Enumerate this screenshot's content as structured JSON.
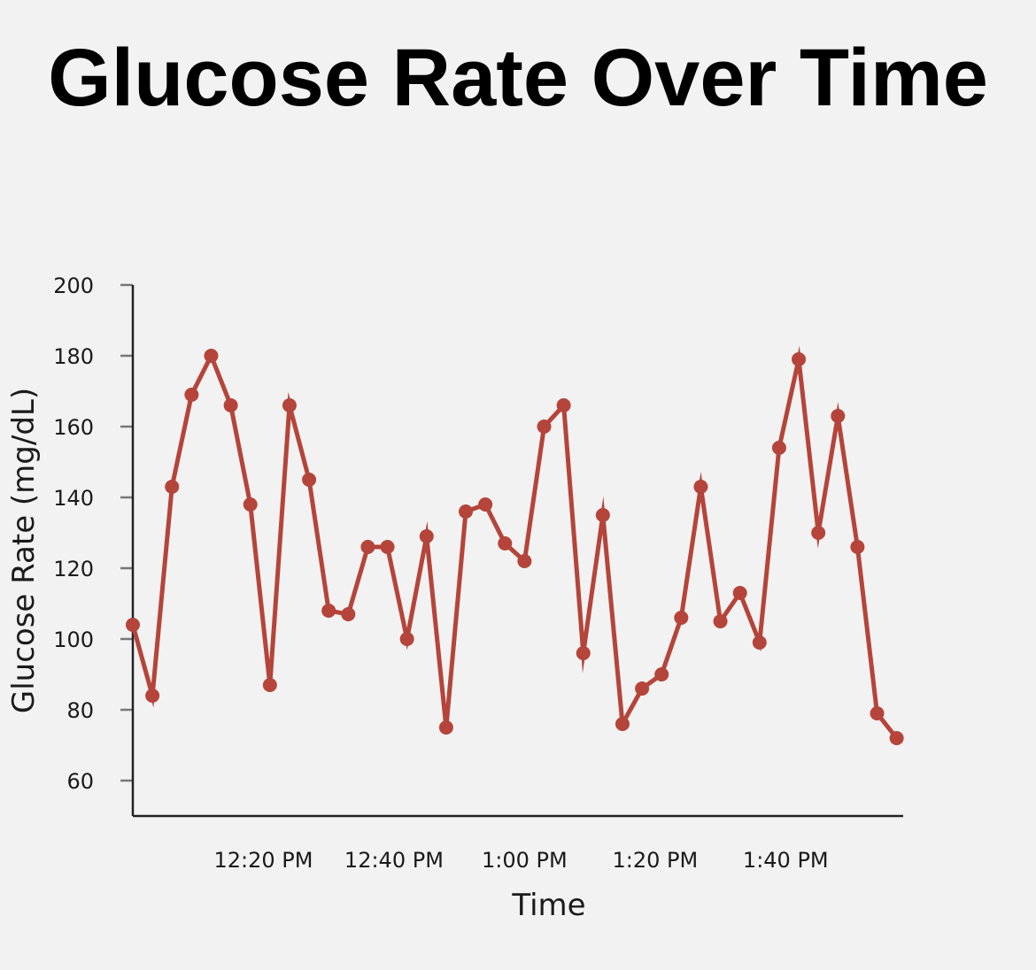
{
  "chart_data": {
    "type": "line",
    "title": "Glucose Rate Over Time",
    "xlabel": "Time",
    "ylabel": "Glucose Rate (mg/dL)",
    "ylim": [
      50,
      200
    ],
    "yticks": [
      60,
      80,
      100,
      120,
      140,
      160,
      180,
      200
    ],
    "xlim": [
      "12:00 PM",
      "1:58 PM"
    ],
    "xticks": [
      {
        "value": "12:20 PM",
        "label": "12:20 PM"
      },
      {
        "value": "12:40 PM",
        "label": "12:40 PM"
      },
      {
        "value": "1:00 PM",
        "label": "1:00 PM"
      },
      {
        "value": "1:20 PM",
        "label": "1:20 PM"
      },
      {
        "value": "1:40 PM",
        "label": "1:40 PM"
      }
    ],
    "grid": false,
    "line_color": "#b5443a",
    "series": [
      {
        "x": [
          "12:00 PM",
          "12:03 PM",
          "12:06 PM",
          "12:09 PM",
          "12:12 PM",
          "12:15 PM",
          "12:18 PM",
          "12:21 PM",
          "12:24 PM",
          "12:27 PM",
          "12:30 PM",
          "12:33 PM",
          "12:36 PM",
          "12:39 PM",
          "12:42 PM",
          "12:45 PM",
          "12:48 PM",
          "12:51 PM",
          "12:54 PM",
          "12:57 PM",
          "1:00 PM",
          "1:03 PM",
          "1:06 PM",
          "1:09 PM",
          "1:12 PM",
          "1:15 PM",
          "1:18 PM",
          "1:21 PM",
          "1:24 PM",
          "1:27 PM",
          "1:30 PM",
          "1:33 PM",
          "1:36 PM",
          "1:39 PM",
          "1:42 PM",
          "1:45 PM",
          "1:48 PM",
          "1:51 PM",
          "1:54 PM",
          "1:57 PM"
        ],
        "values": [
          104,
          84,
          143,
          169,
          180,
          166,
          138,
          87,
          166,
          145,
          108,
          107,
          126,
          126,
          100,
          129,
          75,
          136,
          138,
          127,
          122,
          160,
          166,
          96,
          135,
          76,
          86,
          90,
          106,
          143,
          105,
          113,
          99,
          154,
          179,
          130,
          163,
          126,
          79,
          72
        ]
      }
    ]
  }
}
